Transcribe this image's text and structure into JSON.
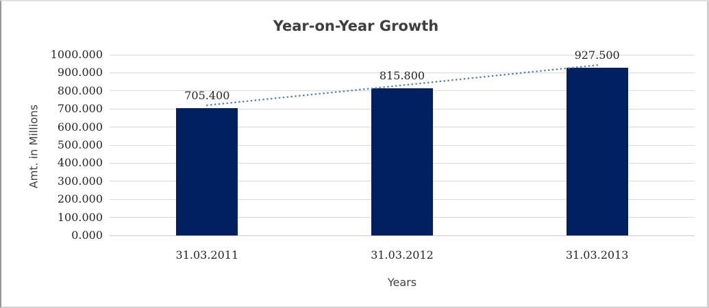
{
  "chart_data": {
    "type": "bar",
    "title": "Year-on-Year Growth",
    "xlabel": "Years",
    "ylabel": "Amt. in Millions",
    "categories": [
      "31.03.2011",
      "31.03.2012",
      "31.03.2013"
    ],
    "values": [
      705.4,
      815.8,
      927.5
    ],
    "data_labels": [
      "705.400",
      "815.800",
      "927.500"
    ],
    "y_ticks": [
      "1000.000",
      "900.000",
      "800.000",
      "700.000",
      "600.000",
      "500.000",
      "400.000",
      "300.000",
      "200.000",
      "100.000",
      "0.000"
    ],
    "ylim": [
      0,
      1000
    ],
    "grid": true,
    "legend": "none",
    "trendline": true,
    "colors": {
      "bar": "#002060",
      "trendline": "#4f81bd",
      "gridline": "#d9d9d9",
      "axis_line": "#c6c6c6",
      "title_text": "#3f3f3f",
      "label_text": "#262626",
      "axis_title_text": "#404040"
    }
  }
}
